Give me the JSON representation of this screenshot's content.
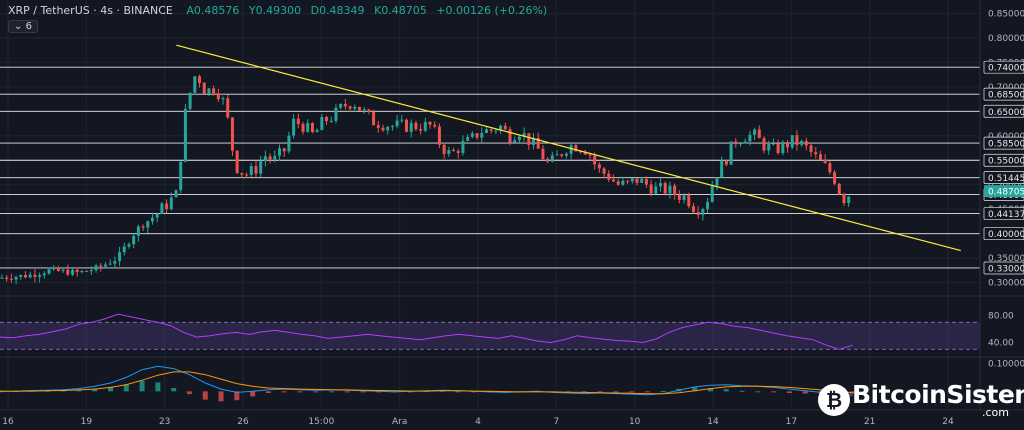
{
  "header": {
    "symbol": "XRP / TetherUS · 4s · BINANCE",
    "open": "A0.48576",
    "high": "Y0.49300",
    "low": "D0.48349",
    "close": "K0.48705",
    "change": "+0.00126 (+0.26%)",
    "badge": "6"
  },
  "watermark": {
    "brand": "BitcoinSistemi",
    "tld": ".com"
  },
  "colors": {
    "bg": "#131722",
    "up": "#26a69a",
    "down": "#ef5350",
    "trendline": "#ffeb3b",
    "rsi": "#b23cff",
    "macd": "#2196f3",
    "signal": "#ff9800"
  },
  "chart_data": [
    {
      "type": "candlestick",
      "title": "",
      "y_ticks": [
        0.3,
        0.35,
        0.4,
        0.45,
        0.5,
        0.55,
        0.6,
        0.65,
        0.7,
        0.75,
        0.8,
        0.85
      ],
      "ylim": [
        0.285,
        0.865
      ],
      "x_ticks": [
        "16",
        "19",
        "23",
        "26",
        "15:00",
        "Ara",
        "4",
        "7",
        "10",
        "14",
        "17",
        "21",
        "24"
      ],
      "horizontal_levels": [
        {
          "value": 0.74,
          "label": "0.74000"
        },
        {
          "value": 0.685,
          "label": "0.68500"
        },
        {
          "value": 0.65,
          "label": "0.65000"
        },
        {
          "value": 0.585,
          "label": "0.58500"
        },
        {
          "value": 0.55,
          "label": "0.55000"
        },
        {
          "value": 0.51445,
          "label": "0.51445"
        },
        {
          "value": 0.48,
          "label": "0.48000"
        },
        {
          "value": 0.44137,
          "label": "0.44137"
        },
        {
          "value": 0.4,
          "label": "0.40000"
        },
        {
          "value": 0.33,
          "label": "0.33000"
        }
      ],
      "current_price": {
        "value": 0.48705,
        "label": "0.48705"
      },
      "trendline": {
        "start": {
          "x": 0.18,
          "y": 0.785
        },
        "end": {
          "x": 0.96,
          "y": 0.39
        }
      },
      "price_path": [
        [
          0.0,
          0.31
        ],
        [
          0.03,
          0.315
        ],
        [
          0.05,
          0.325
        ],
        [
          0.08,
          0.32
        ],
        [
          0.1,
          0.33
        ],
        [
          0.12,
          0.35
        ],
        [
          0.14,
          0.41
        ],
        [
          0.16,
          0.44
        ],
        [
          0.18,
          0.48
        ],
        [
          0.19,
          0.66
        ],
        [
          0.2,
          0.73
        ],
        [
          0.21,
          0.69
        ],
        [
          0.22,
          0.7
        ],
        [
          0.23,
          0.66
        ],
        [
          0.24,
          0.54
        ],
        [
          0.25,
          0.52
        ],
        [
          0.26,
          0.53
        ],
        [
          0.27,
          0.56
        ],
        [
          0.28,
          0.55
        ],
        [
          0.29,
          0.57
        ],
        [
          0.3,
          0.63
        ],
        [
          0.31,
          0.62
        ],
        [
          0.32,
          0.6
        ],
        [
          0.33,
          0.63
        ],
        [
          0.34,
          0.64
        ],
        [
          0.35,
          0.66
        ],
        [
          0.36,
          0.67
        ],
        [
          0.37,
          0.65
        ],
        [
          0.38,
          0.63
        ],
        [
          0.4,
          0.62
        ],
        [
          0.42,
          0.62
        ],
        [
          0.44,
          0.62
        ],
        [
          0.45,
          0.58
        ],
        [
          0.46,
          0.56
        ],
        [
          0.47,
          0.58
        ],
        [
          0.48,
          0.59
        ],
        [
          0.49,
          0.61
        ],
        [
          0.5,
          0.61
        ],
        [
          0.51,
          0.62
        ],
        [
          0.52,
          0.6
        ],
        [
          0.53,
          0.61
        ],
        [
          0.54,
          0.59
        ],
        [
          0.55,
          0.57
        ],
        [
          0.56,
          0.54
        ],
        [
          0.57,
          0.56
        ],
        [
          0.58,
          0.58
        ],
        [
          0.59,
          0.58
        ],
        [
          0.6,
          0.57
        ],
        [
          0.61,
          0.53
        ],
        [
          0.62,
          0.52
        ],
        [
          0.63,
          0.5
        ],
        [
          0.64,
          0.5
        ],
        [
          0.65,
          0.51
        ],
        [
          0.66,
          0.5
        ],
        [
          0.67,
          0.49
        ],
        [
          0.68,
          0.49
        ],
        [
          0.69,
          0.48
        ],
        [
          0.7,
          0.475
        ],
        [
          0.71,
          0.45
        ],
        [
          0.72,
          0.46
        ],
        [
          0.73,
          0.52
        ],
        [
          0.74,
          0.55
        ],
        [
          0.75,
          0.59
        ],
        [
          0.76,
          0.6
        ],
        [
          0.77,
          0.6
        ],
        [
          0.78,
          0.58
        ],
        [
          0.79,
          0.57
        ],
        [
          0.8,
          0.58
        ],
        [
          0.81,
          0.59
        ],
        [
          0.82,
          0.58
        ],
        [
          0.83,
          0.56
        ],
        [
          0.84,
          0.54
        ],
        [
          0.85,
          0.52
        ],
        [
          0.86,
          0.47
        ],
        [
          0.87,
          0.487
        ]
      ]
    },
    {
      "type": "line",
      "title": "",
      "y_ticks": [
        40.0,
        80.0
      ],
      "ylim": [
        20,
        100
      ],
      "band": [
        30,
        70
      ],
      "series": [
        {
          "values": [
            48,
            47,
            50,
            52,
            56,
            60,
            67,
            70,
            75,
            82,
            78,
            74,
            70,
            65,
            55,
            48,
            50,
            53,
            55,
            52,
            56,
            58,
            55,
            52,
            50,
            46,
            48,
            50,
            52,
            50,
            48,
            46,
            44,
            47,
            50,
            52,
            50,
            48,
            46,
            50,
            46,
            42,
            40,
            44,
            50,
            47,
            45,
            43,
            42,
            40,
            45,
            55,
            62,
            66,
            70,
            68,
            64,
            62,
            58,
            54,
            50,
            47,
            44,
            36,
            30,
            36
          ]
        }
      ]
    },
    {
      "type": "line",
      "title": "",
      "y_ticks": [
        0.1
      ],
      "ylim": [
        -0.06,
        0.12
      ],
      "series": [
        {
          "values": [
            0.0,
            0.001,
            0.003,
            0.004,
            0.006,
            0.01,
            0.018,
            0.03,
            0.05,
            0.078,
            0.09,
            0.082,
            0.06,
            0.03,
            0.008,
            -0.004,
            0.0,
            0.006,
            0.008,
            0.006,
            0.004,
            0.006,
            0.004,
            0.002,
            0.0,
            -0.002,
            0.0,
            0.002,
            0.004,
            0.002,
            0.0,
            -0.002,
            -0.004,
            -0.002,
            0.0,
            -0.004,
            -0.006,
            -0.008,
            -0.006,
            -0.008,
            -0.01,
            -0.012,
            -0.008,
            0.004,
            0.016,
            0.022,
            0.024,
            0.02,
            0.018,
            0.014,
            0.008,
            0.002,
            -0.004,
            -0.01,
            -0.014
          ]
        },
        {
          "values": [
            0.0,
            0.0,
            0.001,
            0.002,
            0.003,
            0.005,
            0.008,
            0.014,
            0.024,
            0.04,
            0.058,
            0.07,
            0.07,
            0.06,
            0.044,
            0.028,
            0.018,
            0.012,
            0.01,
            0.008,
            0.007,
            0.006,
            0.005,
            0.004,
            0.003,
            0.002,
            0.001,
            0.001,
            0.002,
            0.002,
            0.001,
            0.0,
            -0.001,
            -0.002,
            -0.002,
            -0.002,
            -0.003,
            -0.004,
            -0.005,
            -0.006,
            -0.007,
            -0.009,
            -0.009,
            -0.005,
            0.002,
            0.01,
            0.016,
            0.018,
            0.018,
            0.017,
            0.014,
            0.01,
            0.005,
            0.0,
            -0.005
          ]
        }
      ]
    }
  ]
}
